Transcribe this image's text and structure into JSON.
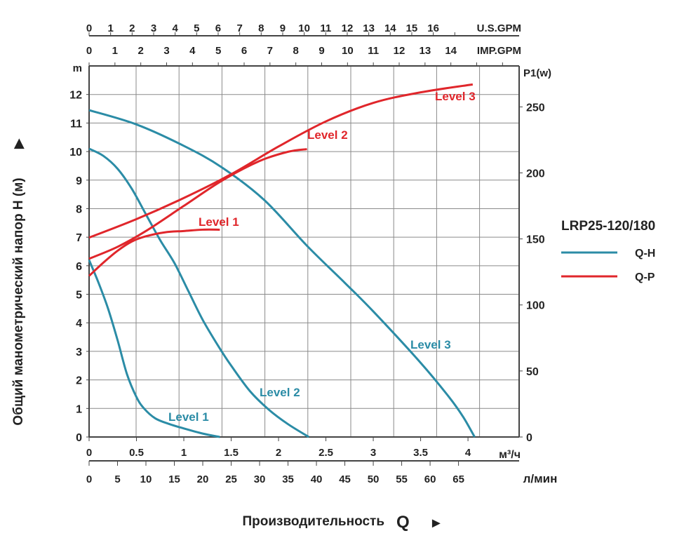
{
  "chart_data": {
    "type": "line",
    "title": "",
    "model": "LRP25-120/180",
    "ylabel": "Общий манометрический напор H (м)",
    "ylabel_arrow": "▶",
    "xlabel": "Производительность",
    "xlabel_symbol": "Q",
    "xlabel_arrow": "►",
    "y_unit": "m",
    "y2_unit": "P1(w)",
    "x_unit": "м³/ч",
    "x2_unit": "л/мин",
    "top1_unit": "U.S.GPM",
    "top2_unit": "IMP.GPM",
    "xlim": [
      0,
      4.54
    ],
    "ylim": [
      0,
      13
    ],
    "y2lim": [
      0,
      281
    ],
    "x_ticks": [
      "0",
      "0.5",
      "1",
      "1.5",
      "2",
      "2.5",
      "3",
      "3.5",
      "4"
    ],
    "x2_ticks": [
      "0",
      "5",
      "10",
      "15",
      "20",
      "25",
      "30",
      "35",
      "40",
      "45",
      "50",
      "55",
      "60",
      "65"
    ],
    "usgpm_ticks": [
      "0",
      "1",
      "2",
      "3",
      "4",
      "5",
      "6",
      "7",
      "8",
      "9",
      "10",
      "11",
      "12",
      "13",
      "14",
      "15",
      "16"
    ],
    "impgpm_ticks": [
      "0",
      "1",
      "2",
      "3",
      "4",
      "5",
      "6",
      "7",
      "8",
      "9",
      "10",
      "11",
      "12",
      "13",
      "14"
    ],
    "y_ticks": [
      "0",
      "1",
      "2",
      "3",
      "4",
      "5",
      "6",
      "7",
      "8",
      "9",
      "10",
      "11",
      "12"
    ],
    "y2_ticks": [
      "0",
      "50",
      "100",
      "150",
      "200",
      "250"
    ],
    "legend": [
      {
        "label": "Q-H",
        "color": "#2b8ca6"
      },
      {
        "label": "Q-P",
        "color": "#e0262b"
      }
    ],
    "legend_position": "right",
    "colors": {
      "qh": "#2b8ca6",
      "qp": "#e0262b",
      "grid": "#8a8a8a",
      "axis": "#444444"
    },
    "series_qh": [
      {
        "name": "Level 1",
        "points": [
          [
            0,
            6.2
          ],
          [
            0.1,
            5.4
          ],
          [
            0.2,
            4.5
          ],
          [
            0.3,
            3.4
          ],
          [
            0.4,
            2.2
          ],
          [
            0.5,
            1.4
          ],
          [
            0.58,
            1.0
          ],
          [
            0.7,
            0.65
          ],
          [
            0.85,
            0.45
          ],
          [
            1.0,
            0.3
          ],
          [
            1.2,
            0.12
          ],
          [
            1.38,
            0
          ]
        ]
      },
      {
        "name": "Level 2",
        "points": [
          [
            0,
            10.1
          ],
          [
            0.15,
            9.85
          ],
          [
            0.3,
            9.4
          ],
          [
            0.45,
            8.7
          ],
          [
            0.6,
            7.8
          ],
          [
            0.75,
            6.9
          ],
          [
            0.9,
            6.1
          ],
          [
            1.05,
            5.1
          ],
          [
            1.2,
            4.1
          ],
          [
            1.38,
            3.1
          ],
          [
            1.5,
            2.5
          ],
          [
            1.7,
            1.6
          ],
          [
            1.9,
            0.95
          ],
          [
            2.1,
            0.45
          ],
          [
            2.32,
            0
          ]
        ]
      },
      {
        "name": "Level 3",
        "points": [
          [
            0,
            11.45
          ],
          [
            0.5,
            10.95
          ],
          [
            1.0,
            10.2
          ],
          [
            1.4,
            9.45
          ],
          [
            1.85,
            8.3
          ],
          [
            2.3,
            6.7
          ],
          [
            2.7,
            5.4
          ],
          [
            3.0,
            4.4
          ],
          [
            3.5,
            2.6
          ],
          [
            3.8,
            1.4
          ],
          [
            3.95,
            0.7
          ],
          [
            4.07,
            0
          ]
        ]
      }
    ],
    "series_qp": [
      {
        "name": "Level 1",
        "points": [
          [
            0,
            122
          ],
          [
            0.15,
            132
          ],
          [
            0.3,
            141
          ],
          [
            0.45,
            148
          ],
          [
            0.6,
            152
          ],
          [
            0.8,
            155
          ],
          [
            1.0,
            156
          ],
          [
            1.2,
            157
          ],
          [
            1.38,
            157
          ]
        ]
      },
      {
        "name": "Level 2",
        "points": [
          [
            0,
            135
          ],
          [
            0.3,
            144
          ],
          [
            0.6,
            156
          ],
          [
            1.0,
            175
          ],
          [
            1.4,
            194
          ],
          [
            1.8,
            209
          ],
          [
            2.1,
            216
          ],
          [
            2.3,
            218
          ]
        ]
      },
      {
        "name": "Level 3",
        "points": [
          [
            0,
            151
          ],
          [
            0.5,
            165
          ],
          [
            1.0,
            181
          ],
          [
            1.5,
            199
          ],
          [
            2.0,
            220
          ],
          [
            2.5,
            239
          ],
          [
            3.0,
            253
          ],
          [
            3.5,
            261
          ],
          [
            4.05,
            267
          ]
        ]
      }
    ]
  }
}
